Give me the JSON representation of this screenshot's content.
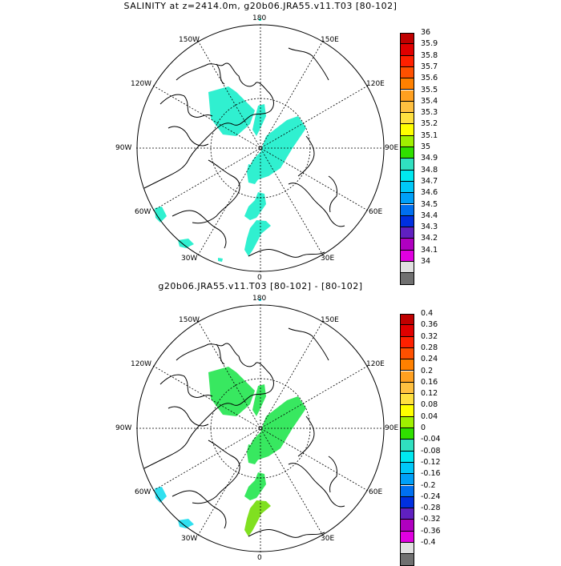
{
  "panel1": {
    "title": "SALINITY at z=2414.0m, g20b06.JRA55.v11.T03 [80-102]",
    "lon_labels": {
      "top": "180",
      "bottom": "0",
      "left": "90W",
      "right": "90E",
      "ul1": "150W",
      "ul2": "120W",
      "ur1": "150E",
      "ur2": "120E",
      "ll1": "60W",
      "ll2": "30W",
      "lr1": "60E",
      "lr2": "30E"
    },
    "colorbar": {
      "labels": [
        "36",
        "35.9",
        "35.8",
        "35.7",
        "35.6",
        "35.5",
        "35.4",
        "35.3",
        "35.2",
        "35.1",
        "35",
        "34.9",
        "34.8",
        "34.7",
        "34.6",
        "34.5",
        "34.4",
        "34.3",
        "34.2",
        "34.1",
        "34"
      ],
      "colors": [
        "#c00000",
        "#e00000",
        "#ff2000",
        "#ff5000",
        "#ff8000",
        "#ffa020",
        "#ffc040",
        "#ffe040",
        "#ffff00",
        "#a0f000",
        "#30e000",
        "#30e0c0",
        "#00e8f0",
        "#00c8f8",
        "#00a0f8",
        "#0070f0",
        "#0030e0",
        "#6020c0",
        "#b000c0",
        "#e000e0",
        "#e0e0e0",
        "#707070"
      ],
      "fill_color": "#30f0d0"
    }
  },
  "panel2": {
    "title": "g20b06.JRA55.v11.T03 [80-102] -  [80-102]",
    "lon_labels": {
      "top": "180",
      "bottom": "0",
      "left": "90W",
      "right": "90E",
      "ul1": "150W",
      "ul2": "120W",
      "ur1": "150E",
      "ur2": "120E",
      "ll1": "60W",
      "ll2": "30W",
      "lr1": "60E",
      "lr2": "30E"
    },
    "colorbar": {
      "labels": [
        "0.4",
        "0.36",
        "0.32",
        "0.28",
        "0.24",
        "0.2",
        "0.16",
        "0.12",
        "0.08",
        "0.04",
        "0",
        "-0.04",
        "-0.08",
        "-0.12",
        "-0.16",
        "-0.2",
        "-0.24",
        "-0.28",
        "-0.32",
        "-0.36",
        "-0.4"
      ],
      "colors": [
        "#c00000",
        "#e00000",
        "#ff2000",
        "#ff5000",
        "#ff8000",
        "#ffa020",
        "#ffc040",
        "#ffe040",
        "#ffff00",
        "#a0f000",
        "#30e000",
        "#30e0c0",
        "#00e8f0",
        "#00c8f8",
        "#00a0f8",
        "#0070f0",
        "#0030e0",
        "#6020c0",
        "#b000c0",
        "#e000e0",
        "#e0e0e0",
        "#707070"
      ],
      "fill_color": "#38e860"
    }
  }
}
